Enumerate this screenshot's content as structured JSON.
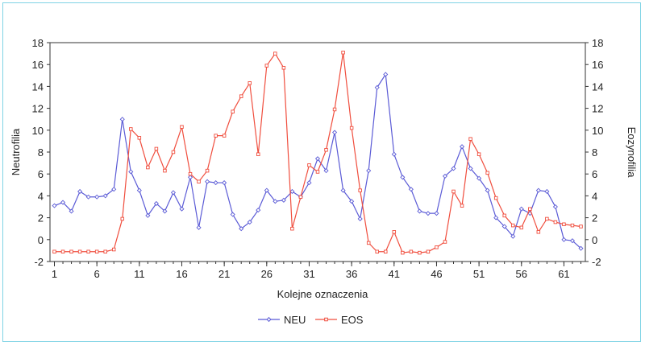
{
  "chart_data": {
    "type": "line",
    "xlabel": "Kolejne oznaczenia",
    "ylabel_left": "Neutrofilia",
    "ylabel_right": "Eozynofilia",
    "ylim": [
      -2,
      18
    ],
    "xlim": [
      1,
      63
    ],
    "y_ticks": [
      "-2",
      "0",
      "2",
      "4",
      "6",
      "8",
      "10",
      "12",
      "14",
      "16",
      "18"
    ],
    "x_ticks": [
      "1",
      "6",
      "11",
      "16",
      "21",
      "26",
      "31",
      "36",
      "41",
      "46",
      "51",
      "56",
      "61"
    ],
    "grid": false,
    "legend_position": "bottom",
    "x": [
      1,
      2,
      3,
      4,
      5,
      6,
      7,
      8,
      9,
      10,
      11,
      12,
      13,
      14,
      15,
      16,
      17,
      18,
      19,
      20,
      21,
      22,
      23,
      24,
      25,
      26,
      27,
      28,
      29,
      30,
      31,
      32,
      33,
      34,
      35,
      36,
      37,
      38,
      39,
      40,
      41,
      42,
      43,
      44,
      45,
      46,
      47,
      48,
      49,
      50,
      51,
      52,
      53,
      54,
      55,
      56,
      57,
      58,
      59,
      60,
      61,
      62,
      63
    ],
    "series": [
      {
        "name": "NEU",
        "color": "#5b5bd6",
        "marker": "diamond",
        "values": [
          3.1,
          3.4,
          2.6,
          4.4,
          3.9,
          3.9,
          4.0,
          4.6,
          11.0,
          6.2,
          4.5,
          2.2,
          3.3,
          2.6,
          4.3,
          2.8,
          5.7,
          1.1,
          5.3,
          5.2,
          5.2,
          2.3,
          1.0,
          1.6,
          2.7,
          4.5,
          3.5,
          3.6,
          4.4,
          3.9,
          5.2,
          7.4,
          6.3,
          9.8,
          4.5,
          3.5,
          1.9,
          6.3,
          13.9,
          15.1,
          7.8,
          5.7,
          4.6,
          2.6,
          2.4,
          2.4,
          5.8,
          6.5,
          8.5,
          6.5,
          5.6,
          4.5,
          2.0,
          1.2,
          0.3,
          2.8,
          2.4,
          4.5,
          4.4,
          3.0,
          0.0,
          -0.1,
          -0.8
        ]
      },
      {
        "name": "EOS",
        "color": "#f04e3e",
        "marker": "square",
        "values": [
          -1.1,
          -1.1,
          -1.1,
          -1.1,
          -1.1,
          -1.1,
          -1.1,
          -0.9,
          1.9,
          10.1,
          9.3,
          6.6,
          8.3,
          6.3,
          8.0,
          10.3,
          6.0,
          5.3,
          6.3,
          9.5,
          9.5,
          11.7,
          13.1,
          14.3,
          7.8,
          15.9,
          17.0,
          15.7,
          1.0,
          3.9,
          6.8,
          6.2,
          8.2,
          11.9,
          17.1,
          10.2,
          4.5,
          -0.3,
          -1.1,
          -1.1,
          0.7,
          -1.2,
          -1.1,
          -1.2,
          -1.1,
          -0.7,
          -0.2,
          4.4,
          3.1,
          9.2,
          7.8,
          6.1,
          3.8,
          2.2,
          1.3,
          1.1,
          2.8,
          0.7,
          1.9,
          1.6,
          1.4,
          1.3,
          1.2
        ]
      }
    ]
  }
}
